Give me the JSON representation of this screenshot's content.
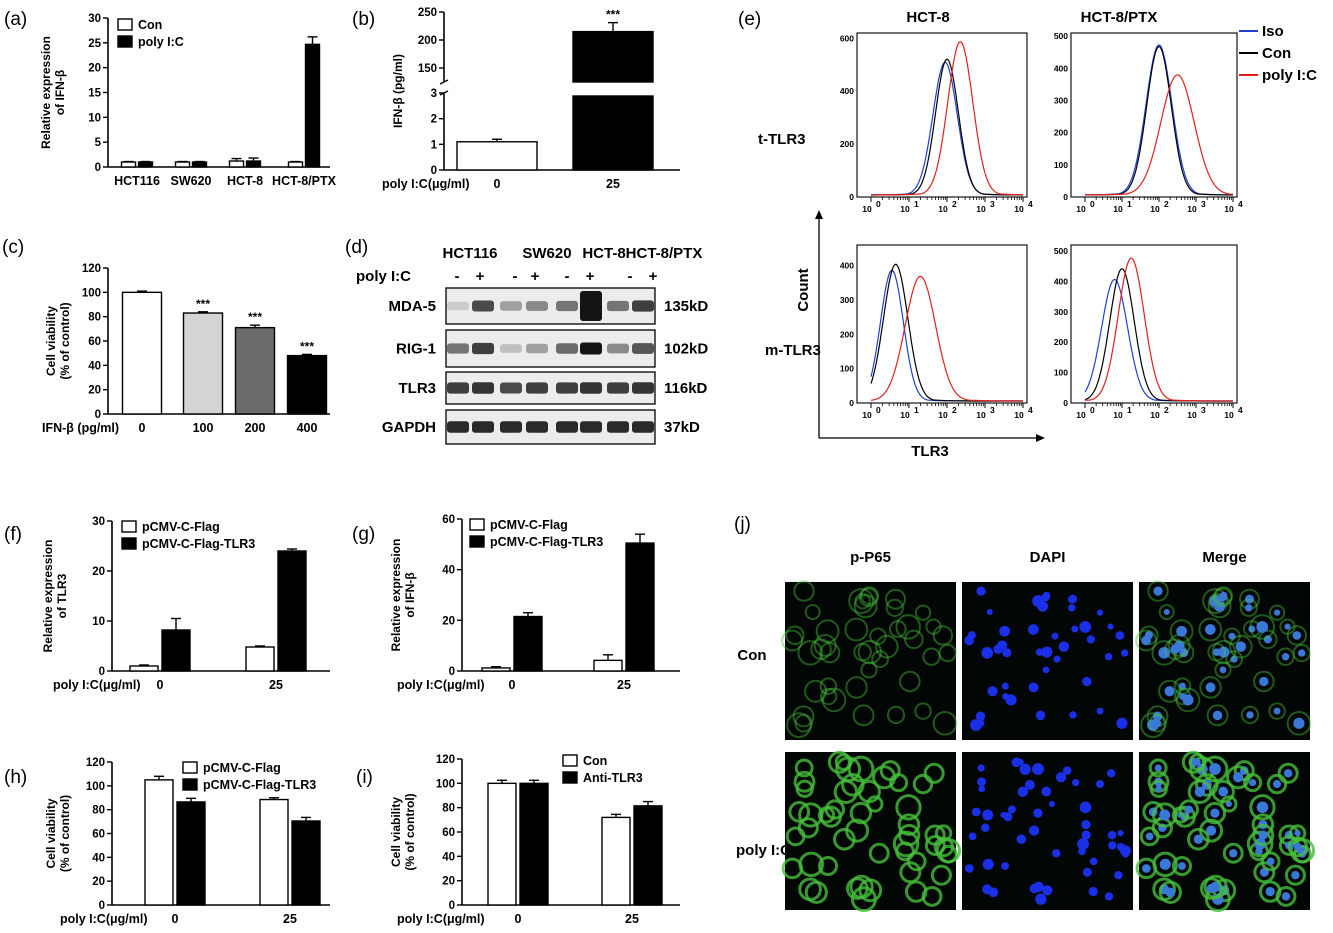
{
  "panels": {
    "a": {
      "label": "(a)"
    },
    "b": {
      "label": "(b)"
    },
    "c": {
      "label": "(c)"
    },
    "d": {
      "label": "(d)"
    },
    "e": {
      "label": "(e)"
    },
    "f": {
      "label": "(f)"
    },
    "g": {
      "label": "(g)"
    },
    "h": {
      "label": "(h)"
    },
    "i": {
      "label": "(i)"
    },
    "j": {
      "label": "(j)"
    }
  },
  "chart_data": [
    {
      "id": "a",
      "type": "bar",
      "categories": [
        "HCT116",
        "SW620",
        "HCT-8",
        "HCT-8/PTX"
      ],
      "series": [
        {
          "name": "Con",
          "values": [
            1,
            1,
            1.2,
            1
          ],
          "errors": [
            0.1,
            0.1,
            0.5,
            0.1
          ]
        },
        {
          "name": "poly I:C",
          "values": [
            1,
            1,
            1.2,
            24.7
          ],
          "errors": [
            0.1,
            0.1,
            0.6,
            1.5
          ]
        }
      ],
      "ylabel_lines": [
        "Relative expression",
        "of IFN-β"
      ],
      "ylim": [
        0,
        30
      ],
      "yticks": [
        "0",
        "5",
        "10",
        "15",
        "20",
        "25",
        "30"
      ],
      "legend": "top-left"
    },
    {
      "id": "b",
      "type": "bar",
      "categories": [
        "0",
        "25"
      ],
      "xaxis_title": "poly I:C(μg/ml)",
      "values": [
        1.1,
        215
      ],
      "errors": [
        0.1,
        16
      ],
      "annotations": [
        "***"
      ],
      "ylabel": "IFN-β (pg/ml)",
      "broken_axis": true,
      "yticks_lower": [
        "0",
        "1",
        "2",
        "3"
      ],
      "yticks_upper": [
        "150",
        "200",
        "250"
      ]
    },
    {
      "id": "c",
      "type": "bar",
      "categories": [
        "0",
        "100",
        "200",
        "400"
      ],
      "xaxis_title": "IFN-β  (pg/ml)",
      "values": [
        100,
        83,
        71,
        48
      ],
      "errors": [
        1,
        1,
        2,
        1
      ],
      "annotations": [
        "***",
        "***",
        "***"
      ],
      "ylabel_lines": [
        "Cell viability",
        "(% of control)"
      ],
      "ylim": [
        0,
        120
      ],
      "yticks": [
        "0",
        "20",
        "40",
        "60",
        "80",
        "100",
        "120"
      ]
    },
    {
      "id": "f",
      "type": "bar",
      "categories": [
        "0",
        "25"
      ],
      "xaxis_title": "poly I:C(μg/ml)",
      "series": [
        {
          "name": "pCMV-C-Flag",
          "values": [
            1,
            4.8
          ],
          "errors": [
            0.2,
            0.2
          ]
        },
        {
          "name": "pCMV-C-Flag-TLR3",
          "values": [
            8.2,
            24
          ],
          "errors": [
            2.3,
            0.4
          ]
        }
      ],
      "ylabel_lines": [
        "Relative expression",
        "of TLR3"
      ],
      "ylim": [
        0,
        30
      ],
      "yticks": [
        "0",
        "10",
        "20",
        "30"
      ],
      "legend": "top-left"
    },
    {
      "id": "g",
      "type": "bar",
      "categories": [
        "0",
        "25"
      ],
      "xaxis_title": "poly I:C(μg/ml)",
      "series": [
        {
          "name": "pCMV-C-Flag",
          "values": [
            1.2,
            4.2
          ],
          "errors": [
            0.5,
            2.2
          ]
        },
        {
          "name": "pCMV-C-Flag-TLR3",
          "values": [
            21.5,
            50.5
          ],
          "errors": [
            1.5,
            3.5
          ]
        }
      ],
      "ylabel_lines": [
        "Relative expression",
        "of IFN-β"
      ],
      "ylim": [
        0,
        60
      ],
      "yticks": [
        "0",
        "20",
        "40",
        "60"
      ],
      "legend": "top-left"
    },
    {
      "id": "h",
      "type": "bar",
      "categories": [
        "0",
        "25"
      ],
      "xaxis_title": "poly I:C(μg/ml)",
      "series": [
        {
          "name": "pCMV-C-Flag",
          "values": [
            105,
            88.5
          ],
          "errors": [
            3,
            1.5
          ]
        },
        {
          "name": "pCMV-C-Flag-TLR3",
          "values": [
            86.5,
            70.5
          ],
          "errors": [
            3,
            3
          ]
        }
      ],
      "ylabel_lines": [
        "Cell viability",
        "(% of control)"
      ],
      "ylim": [
        0,
        120
      ],
      "yticks": [
        "0",
        "20",
        "40",
        "60",
        "80",
        "100",
        "120"
      ],
      "legend": "top-left"
    },
    {
      "id": "i",
      "type": "bar",
      "categories": [
        "0",
        "25"
      ],
      "xaxis_title": "poly I:C(μg/ml)",
      "series": [
        {
          "name": "Con",
          "values": [
            100,
            72
          ],
          "errors": [
            2.5,
            2.5
          ]
        },
        {
          "name": "Anti-TLR3",
          "values": [
            100,
            81.5
          ],
          "errors": [
            2.5,
            3.5
          ]
        }
      ],
      "ylabel_lines": [
        "Cell viability",
        "(% of control)"
      ],
      "ylim": [
        0,
        120
      ],
      "yticks": [
        "0",
        "20",
        "40",
        "60",
        "80",
        "100",
        "120"
      ],
      "legend": "top-left"
    }
  ],
  "western_blot": {
    "cell_lines": [
      "HCT116",
      "SW620",
      "HCT-8",
      "HCT-8/PTX"
    ],
    "treatment_label": "poly I:C",
    "lane_signs": [
      "-",
      "+",
      "-",
      "+",
      "-",
      "+",
      "-",
      "+"
    ],
    "proteins": [
      {
        "name": "MDA-5",
        "size": "135kD"
      },
      {
        "name": "RIG-1",
        "size": "102kD"
      },
      {
        "name": "TLR3",
        "size": "116kD"
      },
      {
        "name": "GAPDH",
        "size": "37kD"
      }
    ]
  },
  "flow": {
    "columns": [
      "HCT-8",
      "HCT-8/PTX"
    ],
    "rows": [
      "t-TLR3",
      "m-TLR3"
    ],
    "legend": [
      {
        "name": "Iso",
        "color": "#1f3fd6"
      },
      {
        "name": "Con",
        "color": "#000000"
      },
      {
        "name": "poly I:C",
        "color": "#e0201b"
      }
    ],
    "xlabel": "TLR3",
    "ylabel": "Count",
    "xtick_base": "10",
    "xtick_exps": [
      "0",
      "1",
      "2",
      "3",
      "4"
    ],
    "plots": [
      {
        "yticks": [
          "0",
          "200",
          "400",
          "600"
        ],
        "ymax": 620
      },
      {
        "yticks": [
          "0",
          "100",
          "200",
          "300",
          "400",
          "500"
        ],
        "ymax": 510
      },
      {
        "yticks": [
          "0",
          "100",
          "200",
          "300",
          "400"
        ],
        "ymax": 460
      },
      {
        "yticks": [
          "0",
          "100",
          "200",
          "300",
          "400",
          "500"
        ],
        "ymax": 520
      }
    ]
  },
  "microscopy": {
    "columns": [
      "p-P65",
      "DAPI",
      "Merge"
    ],
    "rows": [
      "Con",
      "poly I:C"
    ]
  }
}
